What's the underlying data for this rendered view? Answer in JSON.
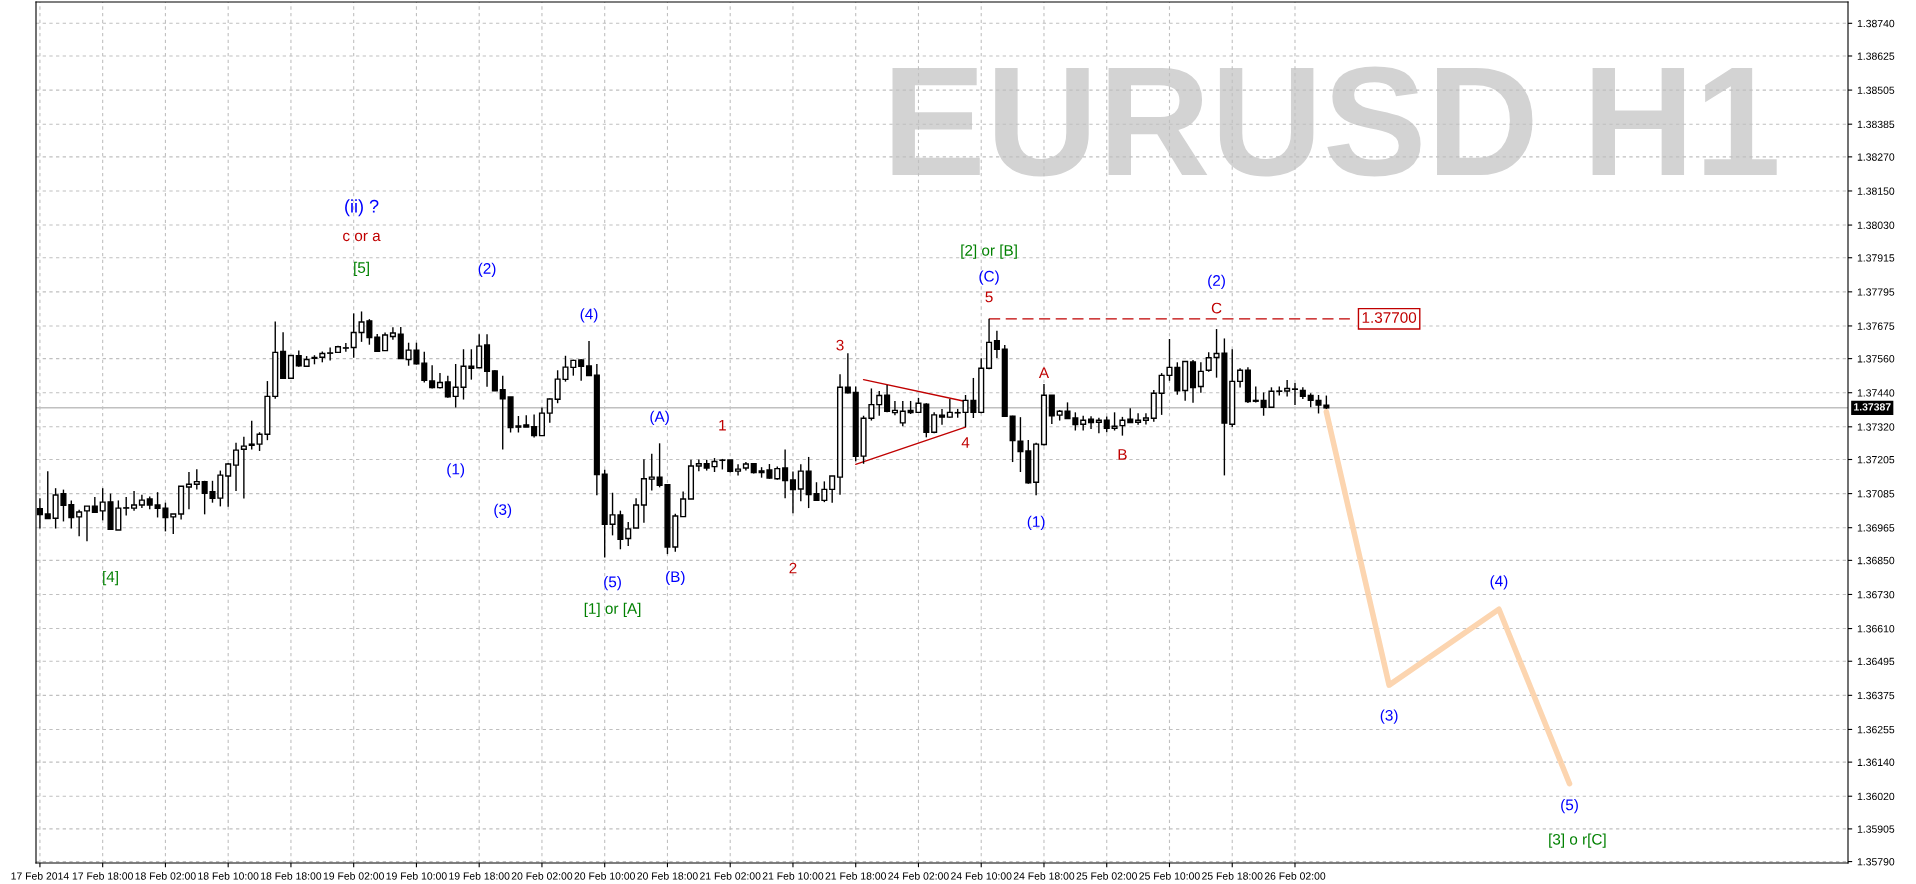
{
  "chart_data": {
    "type": "candlestick",
    "title": "EURUSD H1",
    "categories": [
      "17 Feb 2014",
      null,
      null,
      null,
      null,
      null,
      null,
      null,
      "17 Feb 18:00",
      null,
      null,
      null,
      null,
      null,
      null,
      null,
      "18 Feb 02:00",
      null,
      null,
      null,
      null,
      null,
      null,
      null,
      "18 Feb 10:00",
      null,
      null,
      null,
      null,
      null,
      null,
      null,
      "18 Feb 18:00",
      null,
      null,
      null,
      null,
      null,
      null,
      null,
      "19 Feb 02:00",
      null,
      null,
      null,
      null,
      null,
      null,
      null,
      "19 Feb 10:00",
      null,
      null,
      null,
      null,
      null,
      null,
      null,
      "19 Feb 18:00",
      null,
      null,
      null,
      null,
      null,
      null,
      null,
      "20 Feb 02:00",
      null,
      null,
      null,
      null,
      null,
      null,
      null,
      "20 Feb 10:00",
      null,
      null,
      null,
      null,
      null,
      null,
      null,
      "20 Feb 18:00",
      null,
      null,
      null,
      null,
      null,
      null,
      null,
      "21 Feb 02:00",
      null,
      null,
      null,
      null,
      null,
      null,
      null,
      "21 Feb 10:00",
      null,
      null,
      null,
      null,
      null,
      null,
      null,
      "21 Feb 18:00",
      null,
      null,
      null,
      null,
      null,
      null,
      null,
      "24 Feb 02:00",
      null,
      null,
      null,
      null,
      null,
      null,
      null,
      "24 Feb 10:00",
      null,
      null,
      null,
      null,
      null,
      null,
      null,
      "24 Feb 18:00",
      null,
      null,
      null,
      null,
      null,
      null,
      null,
      "25 Feb 02:00",
      null,
      null,
      null,
      null,
      null,
      null,
      null,
      "25 Feb 10:00",
      null,
      null,
      null,
      null,
      null,
      null,
      null,
      "25 Feb 18:00",
      null,
      null,
      null,
      null,
      null,
      null,
      null,
      "26 Feb 02:00",
      null,
      null,
      null,
      null,
      null,
      null,
      null,
      null,
      null,
      null,
      null,
      null,
      null,
      null,
      null,
      null,
      null,
      null,
      null,
      null,
      null,
      null,
      null,
      null,
      null,
      null,
      null,
      null,
      null,
      null,
      null,
      null,
      null,
      null,
      null,
      null,
      null,
      null,
      null,
      null,
      null,
      null,
      null,
      null,
      null,
      null,
      null,
      null,
      null,
      null,
      null,
      null,
      null,
      null,
      null,
      null,
      null,
      null,
      null,
      null,
      null,
      null,
      null,
      null,
      null,
      null,
      null,
      null,
      null,
      null
    ],
    "ohlc": [
      [
        1.37032,
        1.37069,
        1.36962,
        1.37011
      ],
      [
        1.37013,
        1.37164,
        1.36997,
        1.36997
      ],
      [
        1.36998,
        1.37104,
        1.36962,
        1.3708
      ],
      [
        1.37085,
        1.37099,
        1.36987,
        1.37044
      ],
      [
        1.37046,
        1.37061,
        1.36962,
        1.37001
      ],
      [
        1.37003,
        1.37028,
        1.36935,
        1.3702
      ],
      [
        1.37024,
        1.37041,
        1.36917,
        1.37041
      ],
      [
        1.37041,
        1.37073,
        1.37019,
        1.37019
      ],
      [
        1.37024,
        1.37104,
        1.36991,
        1.37055
      ],
      [
        1.37056,
        1.37085,
        1.36959,
        1.36959
      ],
      [
        1.36957,
        1.37061,
        1.36957,
        1.37034
      ],
      [
        1.37034,
        1.37073,
        1.37008,
        1.37035
      ],
      [
        1.37034,
        1.37094,
        1.37025,
        1.37045
      ],
      [
        1.37045,
        1.37081,
        1.37034,
        1.37062
      ],
      [
        1.37066,
        1.37075,
        1.3703,
        1.37045
      ],
      [
        1.37045,
        1.3709,
        1.37001,
        1.37033
      ],
      [
        1.37034,
        1.37053,
        1.36952,
        1.37001
      ],
      [
        1.37003,
        1.37013,
        1.36943,
        1.37013
      ],
      [
        1.37013,
        1.37111,
        1.36994,
        1.37111
      ],
      [
        1.37108,
        1.37161,
        1.3703,
        1.37118
      ],
      [
        1.37118,
        1.37171,
        1.37099,
        1.37127
      ],
      [
        1.37127,
        1.3713,
        1.37012,
        1.37086
      ],
      [
        1.37092,
        1.3713,
        1.37053,
        1.37068
      ],
      [
        1.37069,
        1.37166,
        1.3704,
        1.3715
      ],
      [
        1.37147,
        1.37193,
        1.37039,
        1.37189
      ],
      [
        1.37185,
        1.37264,
        1.37094,
        1.37238
      ],
      [
        1.37241,
        1.37285,
        1.37068,
        1.37252
      ],
      [
        1.37259,
        1.37341,
        1.3724,
        1.37255
      ],
      [
        1.37259,
        1.37301,
        1.37235,
        1.37294
      ],
      [
        1.37294,
        1.37481,
        1.37273,
        1.37427
      ],
      [
        1.37427,
        1.37691,
        1.37419,
        1.37582
      ],
      [
        1.37585,
        1.37653,
        1.37491,
        1.37491
      ],
      [
        1.37491,
        1.37571,
        1.37491,
        1.37571
      ],
      [
        1.3757,
        1.37589,
        1.37531,
        1.37535
      ],
      [
        1.37533,
        1.37569,
        1.37533,
        1.37557
      ],
      [
        1.37564,
        1.37572,
        1.3754,
        1.37561
      ],
      [
        1.37565,
        1.37585,
        1.37547,
        1.37578
      ],
      [
        1.37579,
        1.37599,
        1.37553,
        1.3758
      ],
      [
        1.37582,
        1.37605,
        1.37582,
        1.37602
      ],
      [
        1.37597,
        1.37615,
        1.37584,
        1.37598
      ],
      [
        1.37599,
        1.37719,
        1.37563,
        1.37652
      ],
      [
        1.37652,
        1.37726,
        1.37619,
        1.37689
      ],
      [
        1.37693,
        1.37699,
        1.37609,
        1.37634
      ],
      [
        1.37635,
        1.37647,
        1.37584,
        1.37586
      ],
      [
        1.37588,
        1.37652,
        1.37588,
        1.37643
      ],
      [
        1.37638,
        1.3767,
        1.37626,
        1.3765
      ],
      [
        1.37646,
        1.37671,
        1.3756,
        1.3756
      ],
      [
        1.37557,
        1.37616,
        1.37535,
        1.3759
      ],
      [
        1.3759,
        1.37616,
        1.37539,
        1.37542
      ],
      [
        1.37544,
        1.37584,
        1.37476,
        1.37484
      ],
      [
        1.37481,
        1.37537,
        1.37455,
        1.37458
      ],
      [
        1.37458,
        1.37509,
        1.37455,
        1.37476
      ],
      [
        1.37478,
        1.375,
        1.37422,
        1.37426
      ],
      [
        1.37427,
        1.37541,
        1.37388,
        1.37459
      ],
      [
        1.37459,
        1.37593,
        1.37416,
        1.37533
      ],
      [
        1.37533,
        1.37593,
        1.37486,
        1.37526
      ],
      [
        1.37528,
        1.37646,
        1.37528,
        1.37604
      ],
      [
        1.37608,
        1.37646,
        1.37461,
        1.37515
      ],
      [
        1.37517,
        1.37519,
        1.37447,
        1.37447
      ],
      [
        1.37451,
        1.375,
        1.3724,
        1.37419
      ],
      [
        1.37425,
        1.37425,
        1.373,
        1.37317
      ],
      [
        1.37323,
        1.37358,
        1.373,
        1.37319
      ],
      [
        1.37327,
        1.37361,
        1.37319,
        1.37319
      ],
      [
        1.3732,
        1.37363,
        1.37282,
        1.37289
      ],
      [
        1.37289,
        1.37388,
        1.37289,
        1.37368
      ],
      [
        1.37368,
        1.3742,
        1.37334,
        1.37418
      ],
      [
        1.37417,
        1.37519,
        1.37403,
        1.37488
      ],
      [
        1.37487,
        1.3757,
        1.37479,
        1.3753
      ],
      [
        1.37529,
        1.37556,
        1.375,
        1.37554
      ],
      [
        1.37555,
        1.37558,
        1.37482,
        1.37533
      ],
      [
        1.37534,
        1.37622,
        1.375,
        1.375
      ],
      [
        1.37502,
        1.37541,
        1.37079,
        1.37152
      ],
      [
        1.37153,
        1.37169,
        1.3686,
        1.36977
      ],
      [
        1.36977,
        1.37088,
        1.36938,
        1.3701
      ],
      [
        1.3701,
        1.37025,
        1.36889,
        1.36924
      ],
      [
        1.36927,
        1.36985,
        1.36901,
        1.36961
      ],
      [
        1.36964,
        1.37069,
        1.36964,
        1.37045
      ],
      [
        1.37045,
        1.37206,
        1.36982,
        1.37137
      ],
      [
        1.37136,
        1.37225,
        1.37096,
        1.37143
      ],
      [
        1.37143,
        1.37262,
        1.37107,
        1.37114
      ],
      [
        1.37116,
        1.37116,
        1.36872,
        1.36897
      ],
      [
        1.36897,
        1.37014,
        1.3688,
        1.37006
      ],
      [
        1.37004,
        1.37092,
        1.37004,
        1.37066
      ],
      [
        1.37066,
        1.37204,
        1.37066,
        1.37182
      ],
      [
        1.37182,
        1.37205,
        1.37164,
        1.3719
      ],
      [
        1.3719,
        1.37204,
        1.37166,
        1.37175
      ],
      [
        1.3718,
        1.3721,
        1.37161,
        1.37198
      ],
      [
        1.37203,
        1.37207,
        1.3717,
        1.37202
      ],
      [
        1.37203,
        1.37203,
        1.37159,
        1.37163
      ],
      [
        1.37164,
        1.37188,
        1.37149,
        1.37171
      ],
      [
        1.37175,
        1.37196,
        1.37166,
        1.37189
      ],
      [
        1.3719,
        1.3719,
        1.37156,
        1.37159
      ],
      [
        1.37165,
        1.37178,
        1.37141,
        1.37159
      ],
      [
        1.37168,
        1.37189,
        1.37137,
        1.3714
      ],
      [
        1.37137,
        1.3718,
        1.37134,
        1.37173
      ],
      [
        1.37175,
        1.3724,
        1.37069,
        1.37131
      ],
      [
        1.37133,
        1.37163,
        1.37016,
        1.37099
      ],
      [
        1.37101,
        1.37188,
        1.37058,
        1.37164
      ],
      [
        1.37164,
        1.37214,
        1.37034,
        1.37082
      ],
      [
        1.37085,
        1.37125,
        1.37061,
        1.37061
      ],
      [
        1.37061,
        1.37128,
        1.37055,
        1.371
      ],
      [
        1.371,
        1.37147,
        1.37053,
        1.37147
      ],
      [
        1.37143,
        1.37505,
        1.37081,
        1.37459
      ],
      [
        1.37459,
        1.37579,
        1.37437,
        1.3744
      ],
      [
        1.37441,
        1.37462,
        1.37199,
        1.37216
      ],
      [
        1.37217,
        1.37359,
        1.3719,
        1.3735
      ],
      [
        1.3735,
        1.37455,
        1.37342,
        1.37398
      ],
      [
        1.37398,
        1.37446,
        1.37359,
        1.3743
      ],
      [
        1.37431,
        1.37467,
        1.37371,
        1.37375
      ],
      [
        1.3737,
        1.37411,
        1.37361,
        1.37378
      ],
      [
        1.37334,
        1.37411,
        1.37322,
        1.37375
      ],
      [
        1.37378,
        1.37411,
        1.37365,
        1.3737
      ],
      [
        1.37371,
        1.37422,
        1.37371,
        1.37403
      ],
      [
        1.374,
        1.37403,
        1.37283,
        1.37301
      ],
      [
        1.37301,
        1.37371,
        1.37297,
        1.37362
      ],
      [
        1.37361,
        1.37383,
        1.37327,
        1.37354
      ],
      [
        1.37354,
        1.37418,
        1.37352,
        1.37371
      ],
      [
        1.3737,
        1.37383,
        1.37352,
        1.37369
      ],
      [
        1.37371,
        1.37432,
        1.37319,
        1.37413
      ],
      [
        1.37413,
        1.37492,
        1.37351,
        1.37371
      ],
      [
        1.37371,
        1.37561,
        1.37368,
        1.37526
      ],
      [
        1.37526,
        1.377,
        1.37523,
        1.37617
      ],
      [
        1.37623,
        1.37658,
        1.37562,
        1.37593
      ],
      [
        1.37593,
        1.37608,
        1.37357,
        1.37357
      ],
      [
        1.37357,
        1.37359,
        1.37196,
        1.37272
      ],
      [
        1.37269,
        1.37354,
        1.37161,
        1.37233
      ],
      [
        1.37235,
        1.37274,
        1.3712,
        1.37123
      ],
      [
        1.37125,
        1.37264,
        1.37079,
        1.37259
      ],
      [
        1.37258,
        1.37471,
        1.37254,
        1.37431
      ],
      [
        1.37431,
        1.37431,
        1.3733,
        1.37359
      ],
      [
        1.37361,
        1.37379,
        1.37342,
        1.37375
      ],
      [
        1.37375,
        1.37406,
        1.37349,
        1.37349
      ],
      [
        1.37351,
        1.37371,
        1.37307,
        1.37328
      ],
      [
        1.37329,
        1.37359,
        1.37307,
        1.37343
      ],
      [
        1.37347,
        1.37357,
        1.37312,
        1.37335
      ],
      [
        1.37336,
        1.37352,
        1.37297,
        1.37343
      ],
      [
        1.37343,
        1.37356,
        1.37301,
        1.37315
      ],
      [
        1.37315,
        1.37371,
        1.37307,
        1.37322
      ],
      [
        1.37324,
        1.37355,
        1.37289,
        1.37343
      ],
      [
        1.37347,
        1.37385,
        1.37334,
        1.37335
      ],
      [
        1.37336,
        1.37368,
        1.37327,
        1.37343
      ],
      [
        1.37343,
        1.37368,
        1.37328,
        1.37351
      ],
      [
        1.3735,
        1.3745,
        1.37338,
        1.37438
      ],
      [
        1.37438,
        1.37509,
        1.37362,
        1.37501
      ],
      [
        1.37501,
        1.37629,
        1.37482,
        1.37529
      ],
      [
        1.37529,
        1.37547,
        1.37433,
        1.37447
      ],
      [
        1.37448,
        1.3755,
        1.37412,
        1.3755
      ],
      [
        1.37548,
        1.37555,
        1.37405,
        1.37458
      ],
      [
        1.37462,
        1.37547,
        1.3744,
        1.37515
      ],
      [
        1.37519,
        1.37582,
        1.37514,
        1.37563
      ],
      [
        1.37564,
        1.37664,
        1.37493,
        1.37578
      ],
      [
        1.37579,
        1.37631,
        1.37149,
        1.37333
      ],
      [
        1.37329,
        1.37593,
        1.37319,
        1.3748
      ],
      [
        1.3748,
        1.37526,
        1.37458,
        1.37519
      ],
      [
        1.37519,
        1.3753,
        1.37404,
        1.37409
      ],
      [
        1.37413,
        1.37462,
        1.37406,
        1.3741
      ],
      [
        1.37413,
        1.37441,
        1.37359,
        1.37389
      ],
      [
        1.37389,
        1.37459,
        1.37389,
        1.37445
      ],
      [
        1.37445,
        1.37462,
        1.3743,
        1.37446
      ],
      [
        1.37446,
        1.37485,
        1.37427,
        1.37455
      ],
      [
        1.37453,
        1.37474,
        1.37397,
        1.37452
      ],
      [
        1.37448,
        1.37459,
        1.37418,
        1.37427
      ],
      [
        1.3743,
        1.37438,
        1.37389,
        1.37413
      ],
      [
        1.37413,
        1.37432,
        1.37367,
        1.37397
      ],
      [
        1.37396,
        1.3743,
        1.37383,
        1.37387
      ],
      null,
      null,
      null,
      null,
      null,
      null,
      null,
      null,
      null,
      null,
      null,
      null,
      null,
      null,
      null,
      null,
      null,
      null,
      null,
      null,
      null,
      null,
      null,
      null,
      null,
      null,
      null,
      null,
      null,
      null,
      null,
      null,
      null,
      null,
      null,
      null,
      null,
      null,
      null,
      null,
      null,
      null,
      null,
      null,
      null,
      null,
      null,
      null,
      null,
      null,
      null,
      null,
      null,
      null,
      null,
      null,
      null,
      null,
      null,
      null,
      null,
      null,
      null,
      null,
      null,
      null
    ],
    "series": [
      {
        "type": "line",
        "color": "#c00000",
        "line_style": "dashed",
        "values": [
          null,
          null,
          null,
          null,
          null,
          null,
          null,
          null,
          null,
          null,
          null,
          null,
          null,
          null,
          null,
          null,
          null,
          null,
          null,
          null,
          null,
          null,
          null,
          null,
          null,
          null,
          null,
          null,
          null,
          null,
          null,
          null,
          null,
          null,
          null,
          null,
          null,
          null,
          null,
          null,
          null,
          null,
          null,
          null,
          null,
          null,
          null,
          null,
          null,
          null,
          null,
          null,
          null,
          null,
          null,
          null,
          null,
          null,
          null,
          null,
          null,
          null,
          null,
          null,
          null,
          null,
          null,
          null,
          null,
          null,
          null,
          null,
          null,
          null,
          null,
          null,
          null,
          null,
          null,
          null,
          null,
          null,
          null,
          null,
          null,
          null,
          null,
          null,
          null,
          null,
          null,
          null,
          null,
          null,
          null,
          null,
          null,
          null,
          null,
          null,
          null,
          null,
          null,
          null,
          null,
          null,
          null,
          null,
          null,
          null,
          null,
          null,
          null,
          null,
          null,
          null,
          null,
          null,
          null,
          null,
          null,
          1.377,
          null,
          null,
          null,
          null,
          null,
          null,
          null,
          null,
          null,
          null,
          null,
          null,
          null,
          null,
          null,
          null,
          null,
          null,
          null,
          null,
          null,
          null,
          null,
          null,
          null,
          null,
          null,
          null,
          null,
          null,
          null,
          null,
          null,
          null,
          null,
          null,
          null,
          null,
          null,
          null,
          null,
          null,
          null,
          null,
          null,
          1.377,
          null,
          null,
          null,
          null,
          null,
          null,
          null,
          null,
          null,
          null,
          null,
          null,
          null,
          null,
          null,
          null,
          null,
          null,
          null,
          null,
          null,
          null,
          null,
          null,
          null,
          null,
          null,
          null,
          null,
          null,
          null,
          null,
          null,
          null,
          null,
          null,
          null,
          null,
          null,
          null,
          null,
          null,
          null,
          null,
          null,
          null,
          null,
          null,
          null,
          null,
          null,
          null,
          null,
          null,
          null,
          null,
          null,
          null,
          null,
          null,
          null,
          null,
          null
        ]
      },
      {
        "type": "line",
        "color": "#c00000",
        "line_style": "solid",
        "values": [
          null,
          null,
          null,
          null,
          null,
          null,
          null,
          null,
          null,
          null,
          null,
          null,
          null,
          null,
          null,
          null,
          null,
          null,
          null,
          null,
          null,
          null,
          null,
          null,
          null,
          null,
          null,
          null,
          null,
          null,
          null,
          null,
          null,
          null,
          null,
          null,
          null,
          null,
          null,
          null,
          null,
          null,
          null,
          null,
          null,
          null,
          null,
          null,
          null,
          null,
          null,
          null,
          null,
          null,
          null,
          null,
          null,
          null,
          null,
          null,
          null,
          null,
          null,
          null,
          null,
          null,
          null,
          null,
          null,
          null,
          null,
          null,
          null,
          null,
          null,
          null,
          null,
          null,
          null,
          null,
          null,
          null,
          null,
          null,
          null,
          null,
          null,
          null,
          null,
          null,
          null,
          null,
          null,
          null,
          null,
          null,
          null,
          null,
          null,
          null,
          null,
          null,
          null,
          null,
          null,
          1.37486,
          null,
          null,
          null,
          null,
          null,
          null,
          null,
          null,
          null,
          null,
          null,
          null,
          1.37409,
          null,
          null,
          null,
          null,
          null,
          null,
          null,
          null,
          null,
          null,
          null,
          null,
          null,
          null,
          null,
          null,
          null,
          null,
          null,
          null,
          null,
          null,
          null,
          null,
          null,
          null,
          null,
          null,
          null,
          null,
          null,
          null,
          null,
          null,
          null,
          null,
          null,
          null,
          null,
          null,
          null,
          null,
          null,
          null,
          null,
          null,
          null,
          null,
          null,
          null,
          null,
          null,
          null,
          null,
          null,
          null,
          null,
          null,
          null,
          null,
          null,
          null,
          null,
          null,
          null,
          null,
          null,
          null,
          null,
          null,
          null,
          null,
          null,
          null,
          null,
          null,
          null,
          null,
          null,
          null,
          null,
          null,
          null,
          null,
          null,
          null,
          null,
          null,
          null,
          null,
          null,
          null,
          null,
          null,
          null,
          null,
          null,
          null,
          null,
          null,
          null,
          null,
          null,
          null,
          null,
          null,
          null,
          null,
          null,
          null,
          null,
          null
        ]
      },
      {
        "type": "line",
        "color": "#c00000",
        "line_style": "solid",
        "values": [
          null,
          null,
          null,
          null,
          null,
          null,
          null,
          null,
          null,
          null,
          null,
          null,
          null,
          null,
          null,
          null,
          null,
          null,
          null,
          null,
          null,
          null,
          null,
          null,
          null,
          null,
          null,
          null,
          null,
          null,
          null,
          null,
          null,
          null,
          null,
          null,
          null,
          null,
          null,
          null,
          null,
          null,
          null,
          null,
          null,
          null,
          null,
          null,
          null,
          null,
          null,
          null,
          null,
          null,
          null,
          null,
          null,
          null,
          null,
          null,
          null,
          null,
          null,
          null,
          null,
          null,
          null,
          null,
          null,
          null,
          null,
          null,
          null,
          null,
          null,
          null,
          null,
          null,
          null,
          null,
          null,
          null,
          null,
          null,
          null,
          null,
          null,
          null,
          null,
          null,
          null,
          null,
          null,
          null,
          null,
          null,
          null,
          null,
          null,
          null,
          null,
          null,
          null,
          null,
          1.37188,
          null,
          null,
          null,
          null,
          null,
          null,
          null,
          null,
          null,
          null,
          null,
          null,
          null,
          1.37319,
          null,
          null,
          null,
          null,
          null,
          null,
          null,
          null,
          null,
          null,
          null,
          null,
          null,
          null,
          null,
          null,
          null,
          null,
          null,
          null,
          null,
          null,
          null,
          null,
          null,
          null,
          null,
          null,
          null,
          null,
          null,
          null,
          null,
          null,
          null,
          null,
          null,
          null,
          null,
          null,
          null,
          null,
          null,
          null,
          null,
          null,
          null,
          null,
          null,
          null,
          null,
          null,
          null,
          null,
          null,
          null,
          null,
          null,
          null,
          null,
          null,
          null,
          null,
          null,
          null,
          null,
          null,
          null,
          null,
          null,
          null,
          null,
          null,
          null,
          null,
          null,
          null,
          null,
          null,
          null,
          null,
          null,
          null,
          null,
          null,
          null,
          null,
          null,
          null,
          null,
          null,
          null,
          null,
          null,
          null,
          null,
          null,
          null,
          null,
          null,
          null,
          null,
          null,
          null,
          null,
          null,
          null,
          null,
          null,
          null,
          null,
          null
        ]
      },
      {
        "type": "line",
        "color": "#fcd5b0",
        "line_style": "solid",
        "values": [
          null,
          null,
          null,
          null,
          null,
          null,
          null,
          null,
          null,
          null,
          null,
          null,
          null,
          null,
          null,
          null,
          null,
          null,
          null,
          null,
          null,
          null,
          null,
          null,
          null,
          null,
          null,
          null,
          null,
          null,
          null,
          null,
          null,
          null,
          null,
          null,
          null,
          null,
          null,
          null,
          null,
          null,
          null,
          null,
          null,
          null,
          null,
          null,
          null,
          null,
          null,
          null,
          null,
          null,
          null,
          null,
          null,
          null,
          null,
          null,
          null,
          null,
          null,
          null,
          null,
          null,
          null,
          null,
          null,
          null,
          null,
          null,
          null,
          null,
          null,
          null,
          null,
          null,
          null,
          null,
          null,
          null,
          null,
          null,
          null,
          null,
          null,
          null,
          null,
          null,
          null,
          null,
          null,
          null,
          null,
          null,
          null,
          null,
          null,
          null,
          null,
          null,
          null,
          null,
          null,
          null,
          null,
          null,
          null,
          null,
          null,
          null,
          null,
          null,
          null,
          null,
          null,
          null,
          null,
          null,
          null,
          null,
          null,
          null,
          null,
          null,
          null,
          null,
          null,
          null,
          null,
          null,
          null,
          null,
          null,
          null,
          null,
          null,
          null,
          null,
          null,
          null,
          null,
          null,
          null,
          null,
          null,
          null,
          null,
          null,
          null,
          null,
          null,
          null,
          null,
          null,
          null,
          null,
          null,
          null,
          null,
          null,
          null,
          null,
          1.37373,
          null,
          null,
          null,
          null,
          null,
          null,
          null,
          1.36411,
          null,
          null,
          null,
          null,
          null,
          null,
          null,
          null,
          null,
          null,
          null,
          null,
          null,
          1.36678,
          null,
          null,
          null,
          null,
          null,
          null,
          null,
          null,
          1.36064,
          null,
          null,
          null,
          null,
          null,
          null,
          null,
          null,
          null,
          null,
          null,
          null,
          null,
          null,
          null,
          null,
          null,
          null,
          null,
          null,
          null,
          null,
          null,
          null,
          null,
          null,
          null,
          null,
          null,
          null,
          null,
          null,
          null,
          null,
          null
        ]
      }
    ],
    "ref_lines": [
      {
        "axis": "y",
        "value": 1.37387,
        "label": "1.37387",
        "color": "#c0c0c0"
      }
    ],
    "annotations": [
      "[4]",
      "(ii) ?",
      "c or a",
      "[5]",
      "(2)",
      "(1)",
      "(3)",
      "(4)",
      "(5)",
      "[1] or [A]",
      "(A)",
      "(B)",
      "1",
      "2",
      "3",
      "4",
      "5",
      "(C)",
      "[2] or [B]",
      "A",
      "(1)",
      "B",
      "(2)",
      "C",
      "1.37700",
      "(3)",
      "(4)",
      "(5)",
      "[3] o r[C]"
    ],
    "ylim": [
      1.35785,
      1.38815
    ],
    "yticks": [
      {
        "value": 1.3874,
        "label": "1.38740"
      },
      1.38625,
      1.38505,
      1.38385,
      {
        "value": 1.3827,
        "label": "1.38270"
      },
      {
        "value": 1.3815,
        "label": "1.38150"
      },
      {
        "value": 1.3803,
        "label": "1.38030"
      },
      1.37915,
      1.37795,
      1.37675,
      {
        "value": 1.3756,
        "label": "1.37560"
      },
      {
        "value": 1.3744,
        "label": "1.37440"
      },
      {
        "value": 1.3732,
        "label": "1.37320"
      },
      1.37205,
      1.37085,
      1.36965,
      {
        "value": 1.3685,
        "label": "1.36850"
      },
      {
        "value": 1.3673,
        "label": "1.36730"
      },
      {
        "value": 1.3661,
        "label": "1.36610"
      },
      1.36495,
      1.36375,
      1.36255,
      {
        "value": 1.3614,
        "label": "1.36140"
      },
      {
        "value": 1.3602,
        "label": "1.36020"
      },
      1.35905,
      {
        "value": 1.3579,
        "label": "1.35790"
      }
    ],
    "grid": true
  }
}
